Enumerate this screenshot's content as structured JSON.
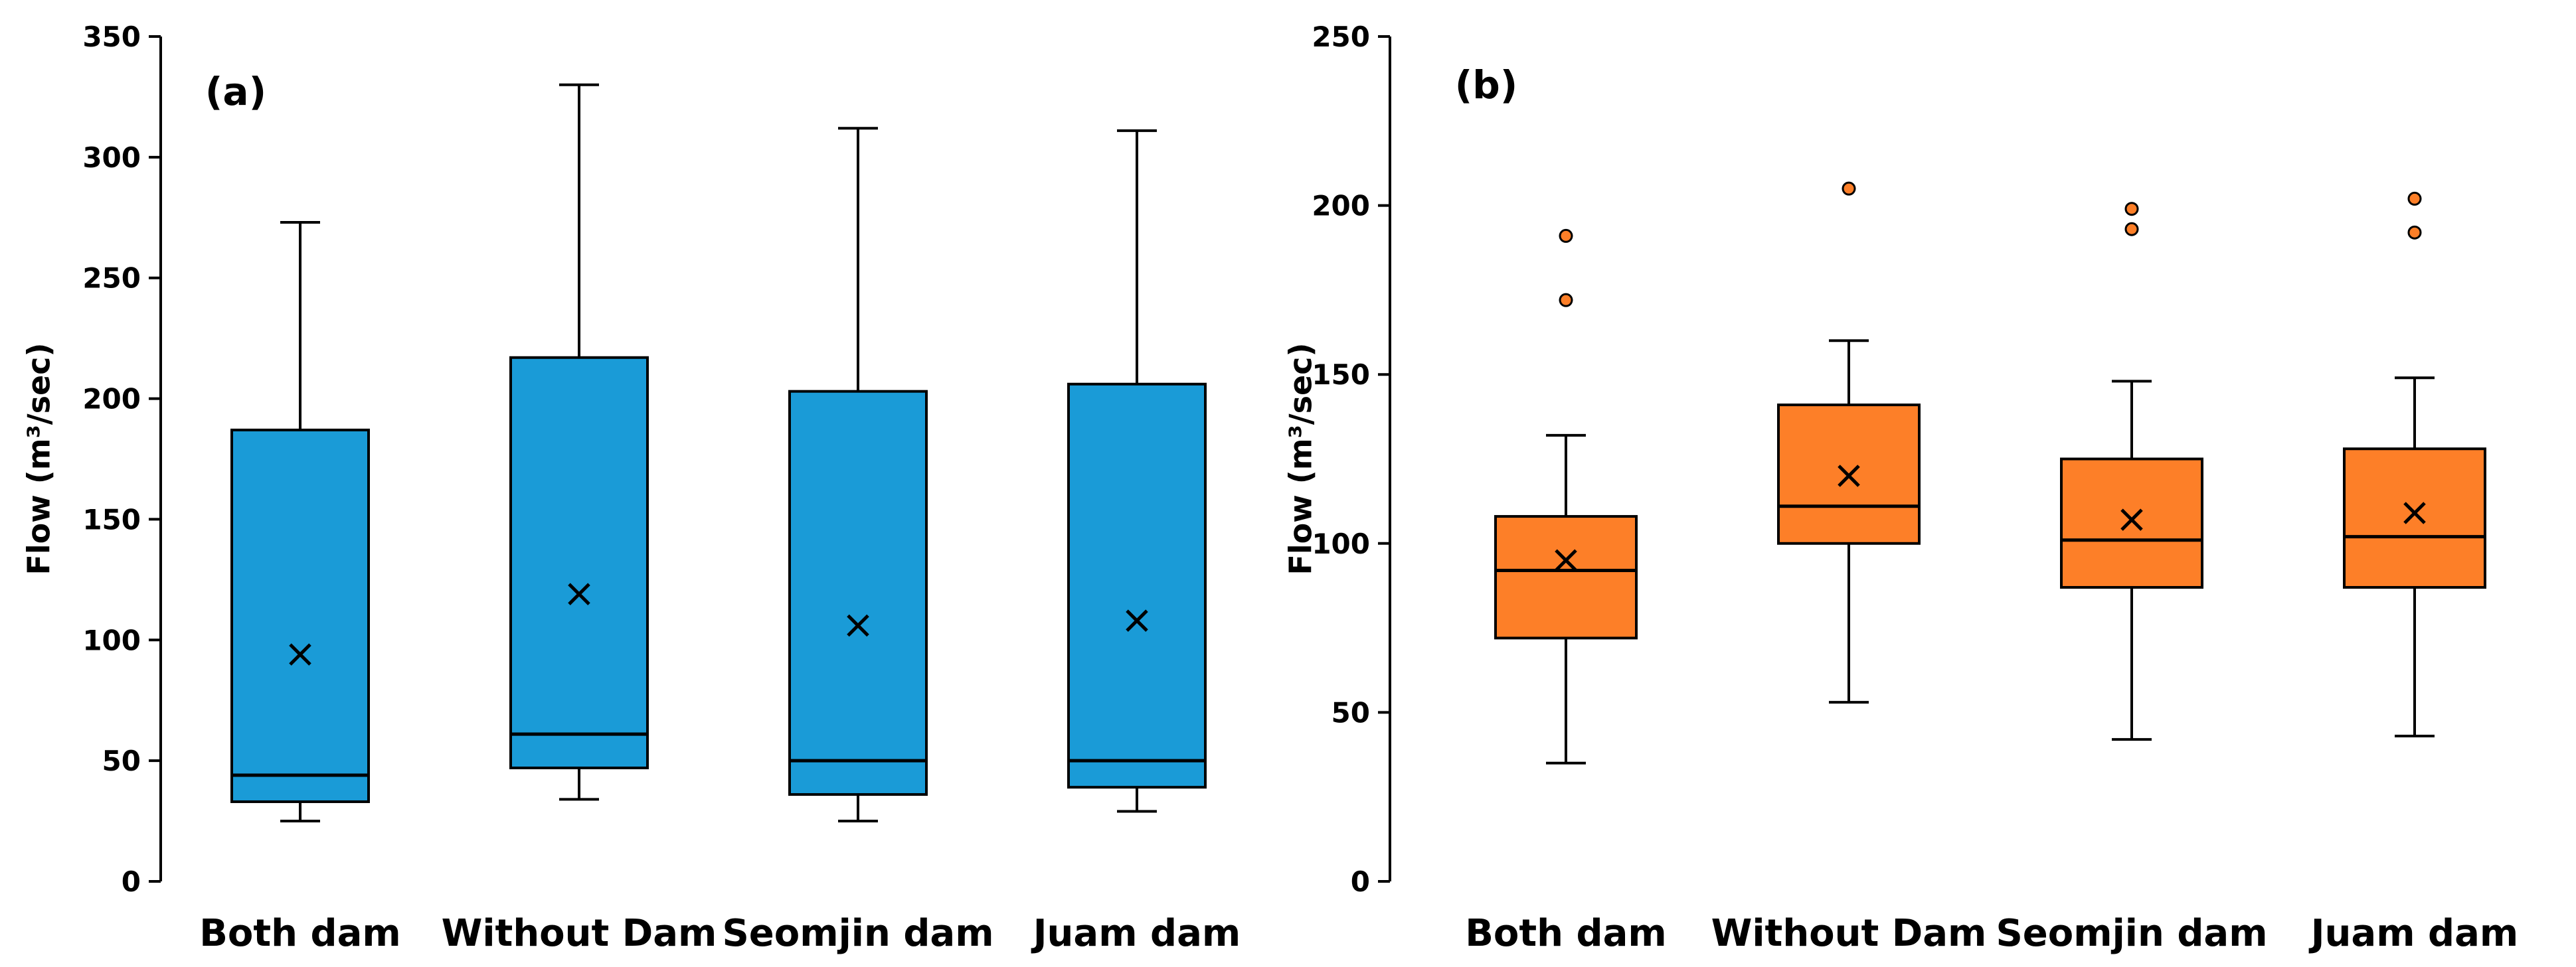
{
  "chart_data": [
    {
      "type": "box",
      "panel_label": "(a)",
      "ylabel": "Flow (m³/sec)",
      "ylim": [
        0,
        350
      ],
      "yticks": [
        0,
        50,
        100,
        150,
        200,
        250,
        300,
        350
      ],
      "categories": [
        "Both dam",
        "Without Dam",
        "Seomjin dam",
        "Juam dam"
      ],
      "fill_color": "#1a9bd7",
      "boxes": [
        {
          "min": 25,
          "q1": 33,
          "median": 44,
          "q3": 187,
          "max": 273,
          "mean": 94,
          "outliers": []
        },
        {
          "min": 34,
          "q1": 47,
          "median": 61,
          "q3": 217,
          "max": 330,
          "mean": 119,
          "outliers": []
        },
        {
          "min": 25,
          "q1": 36,
          "median": 50,
          "q3": 203,
          "max": 312,
          "mean": 106,
          "outliers": []
        },
        {
          "min": 29,
          "q1": 39,
          "median": 50,
          "q3": 206,
          "max": 311,
          "mean": 108,
          "outliers": []
        }
      ]
    },
    {
      "type": "box",
      "panel_label": "(b)",
      "ylabel": "Flow (m³/sec)",
      "ylim": [
        0,
        250
      ],
      "yticks": [
        0,
        50,
        100,
        150,
        200,
        250
      ],
      "categories": [
        "Both dam",
        "Without Dam",
        "Seomjin dam",
        "Juam dam"
      ],
      "fill_color": "#fd7f28",
      "boxes": [
        {
          "min": 35,
          "q1": 72,
          "median": 92,
          "q3": 108,
          "max": 132,
          "mean": 95,
          "outliers": [
            172,
            191
          ]
        },
        {
          "min": 53,
          "q1": 100,
          "median": 111,
          "q3": 141,
          "max": 160,
          "mean": 120,
          "outliers": [
            205
          ]
        },
        {
          "min": 42,
          "q1": 87,
          "median": 101,
          "q3": 125,
          "max": 148,
          "mean": 107,
          "outliers": [
            193,
            199
          ]
        },
        {
          "min": 43,
          "q1": 87,
          "median": 102,
          "q3": 128,
          "max": 149,
          "mean": 109,
          "outliers": [
            192,
            202
          ]
        }
      ]
    }
  ]
}
